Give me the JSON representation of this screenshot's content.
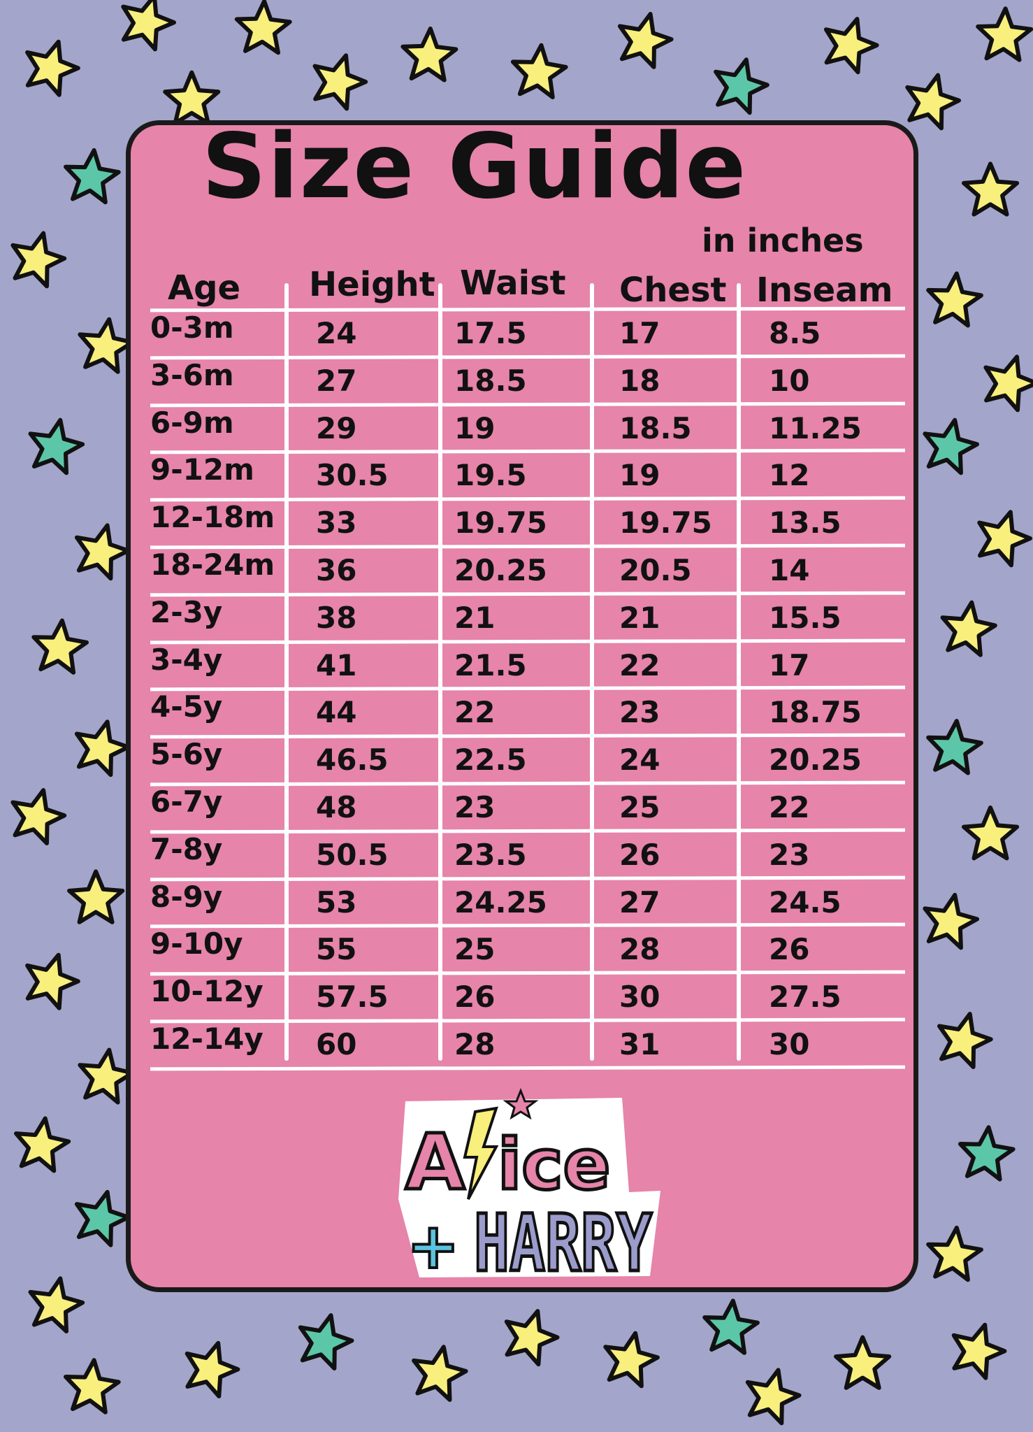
{
  "title": "Size Guide",
  "units": "in inches",
  "colors": {
    "background": "#a4a5ca",
    "card": "#e684a9",
    "star_yellow": "#f8ef7d",
    "star_teal": "#5cc6a8",
    "lines": "#ffffff"
  },
  "table": {
    "headers": [
      "Age",
      "Height",
      "Waist",
      "Chest",
      "Inseam"
    ],
    "rows": [
      [
        "0-3m",
        "24",
        "17.5",
        "17",
        "8.5"
      ],
      [
        "3-6m",
        "27",
        "18.5",
        "18",
        "10"
      ],
      [
        "6-9m",
        "29",
        "19",
        "18.5",
        "11.25"
      ],
      [
        "9-12m",
        "30.5",
        "19.5",
        "19",
        "12"
      ],
      [
        "12-18m",
        "33",
        "19.75",
        "19.75",
        "13.5"
      ],
      [
        "18-24m",
        "36",
        "20.25",
        "20.5",
        "14"
      ],
      [
        "2-3y",
        "38",
        "21",
        "21",
        "15.5"
      ],
      [
        "3-4y",
        "41",
        "21.5",
        "22",
        "17"
      ],
      [
        "4-5y",
        "44",
        "22",
        "23",
        "18.75"
      ],
      [
        "5-6y",
        "46.5",
        "22.5",
        "24",
        "20.25"
      ],
      [
        "6-7y",
        "48",
        "23",
        "25",
        "22"
      ],
      [
        "7-8y",
        "50.5",
        "23.5",
        "26",
        "23"
      ],
      [
        "8-9y",
        "53",
        "24.25",
        "27",
        "24.5"
      ],
      [
        "9-10y",
        "55",
        "25",
        "28",
        "26"
      ],
      [
        "10-12y",
        "57.5",
        "26",
        "30",
        "27.5"
      ],
      [
        "12-14y",
        "60",
        "28",
        "31",
        "30"
      ]
    ]
  },
  "logo": {
    "line1": "Alice",
    "line2": "+HARRY"
  }
}
